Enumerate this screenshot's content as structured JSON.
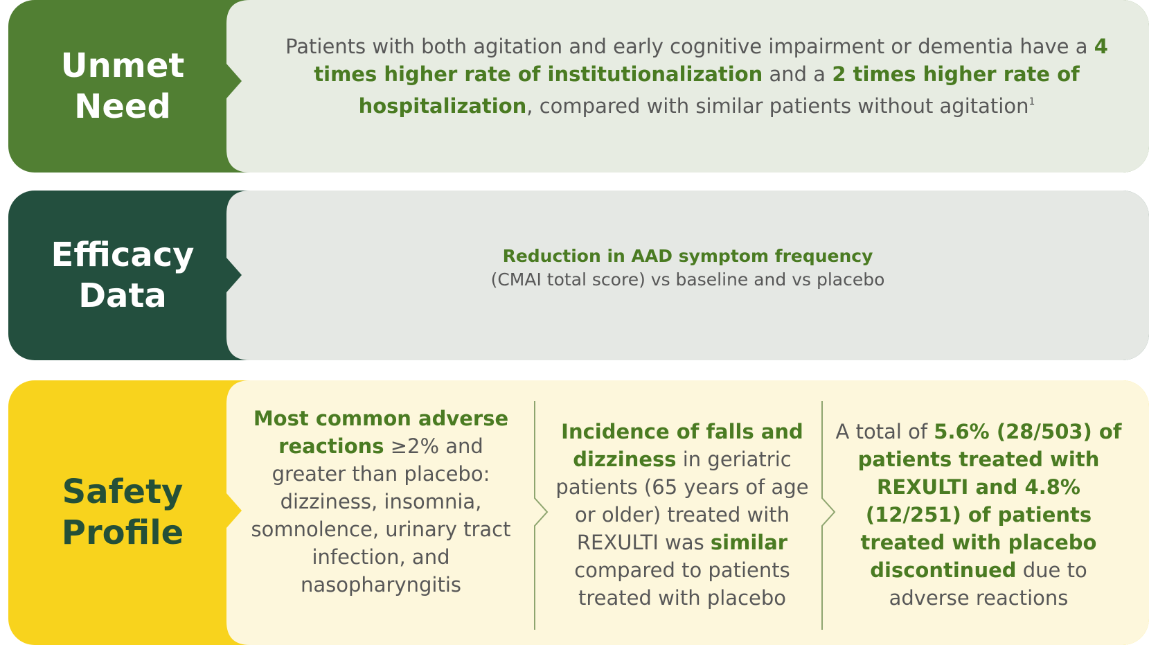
{
  "unmet_need": {
    "label_line1": "Unmet",
    "label_line2": "Need",
    "text_intro": "Patients with both agitation and early cognitive impairment or dementia have a ",
    "highlight1": "4 times higher rate of institutionalization",
    "text_mid": " and a ",
    "highlight2": "2 times higher rate of hospitalization",
    "text_end": ", compared with similar patients without agitation",
    "footnote": "1"
  },
  "efficacy": {
    "label_line1": "Efficacy",
    "label_line2": "Data",
    "heading": "Reduction in AAD symptom frequency",
    "subtext": "(CMAI total score) vs baseline and vs placebo"
  },
  "safety": {
    "label_line1": "Safety",
    "label_line2": "Profile",
    "col1_highlight": "Most common adverse reactions",
    "col1_text": " ≥2% and greater than placebo: dizziness, insomnia, somnolence, urinary tract infection, and nasopharyngitis",
    "col2_highlight1": "Incidence of falls and dizziness",
    "col2_text1": " in geriatric patients (65 years of age or older) treated with REXULTI was ",
    "col2_highlight2": "similar",
    "col2_text2": " compared to patients treated with placebo",
    "col3_text1": "A total of ",
    "col3_highlight": "5.6% (28/503) of patients treated with REXULTI and 4.8% (12/251) of patients treated with placebo discontinued",
    "col3_text2": " due to adverse reactions"
  },
  "colors": {
    "unmet_tab": "#517f33",
    "unmet_panel": "#e7ece2",
    "efficacy_tab": "#234f3e",
    "efficacy_panel": "#e5e8e4",
    "safety_tab": "#f8d31d",
    "safety_panel": "#fdf7dc",
    "highlight_green": "#4a7b22",
    "dark_green": "#245038",
    "body_text": "#575757"
  }
}
